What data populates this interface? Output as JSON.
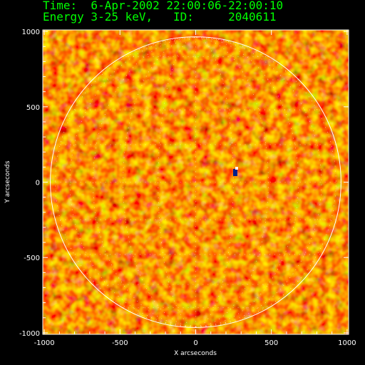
{
  "header": {
    "time_line": "Time:  6-Apr-2002 22:00:06-22:00:10",
    "energy_line": "Energy 3-25 keV,   ID:     2040611"
  },
  "axes": {
    "xlabel": "X arcseconds",
    "ylabel": "Y arcseconds",
    "xlim": [
      -1010,
      1010
    ],
    "ylim": [
      -1010,
      1010
    ],
    "xticks": [
      "-1000",
      "-500",
      "0",
      "500",
      "1000"
    ],
    "yticks": [
      "1000",
      "500",
      "0",
      "-500",
      "-1000"
    ]
  },
  "image": {
    "colormap": [
      "#200000",
      "#a80000",
      "#e83000",
      "#ff7a00",
      "#ffd020",
      "#ffffe0"
    ],
    "limb_color": "#ffffff",
    "grid_color": "#ffffff"
  }
}
